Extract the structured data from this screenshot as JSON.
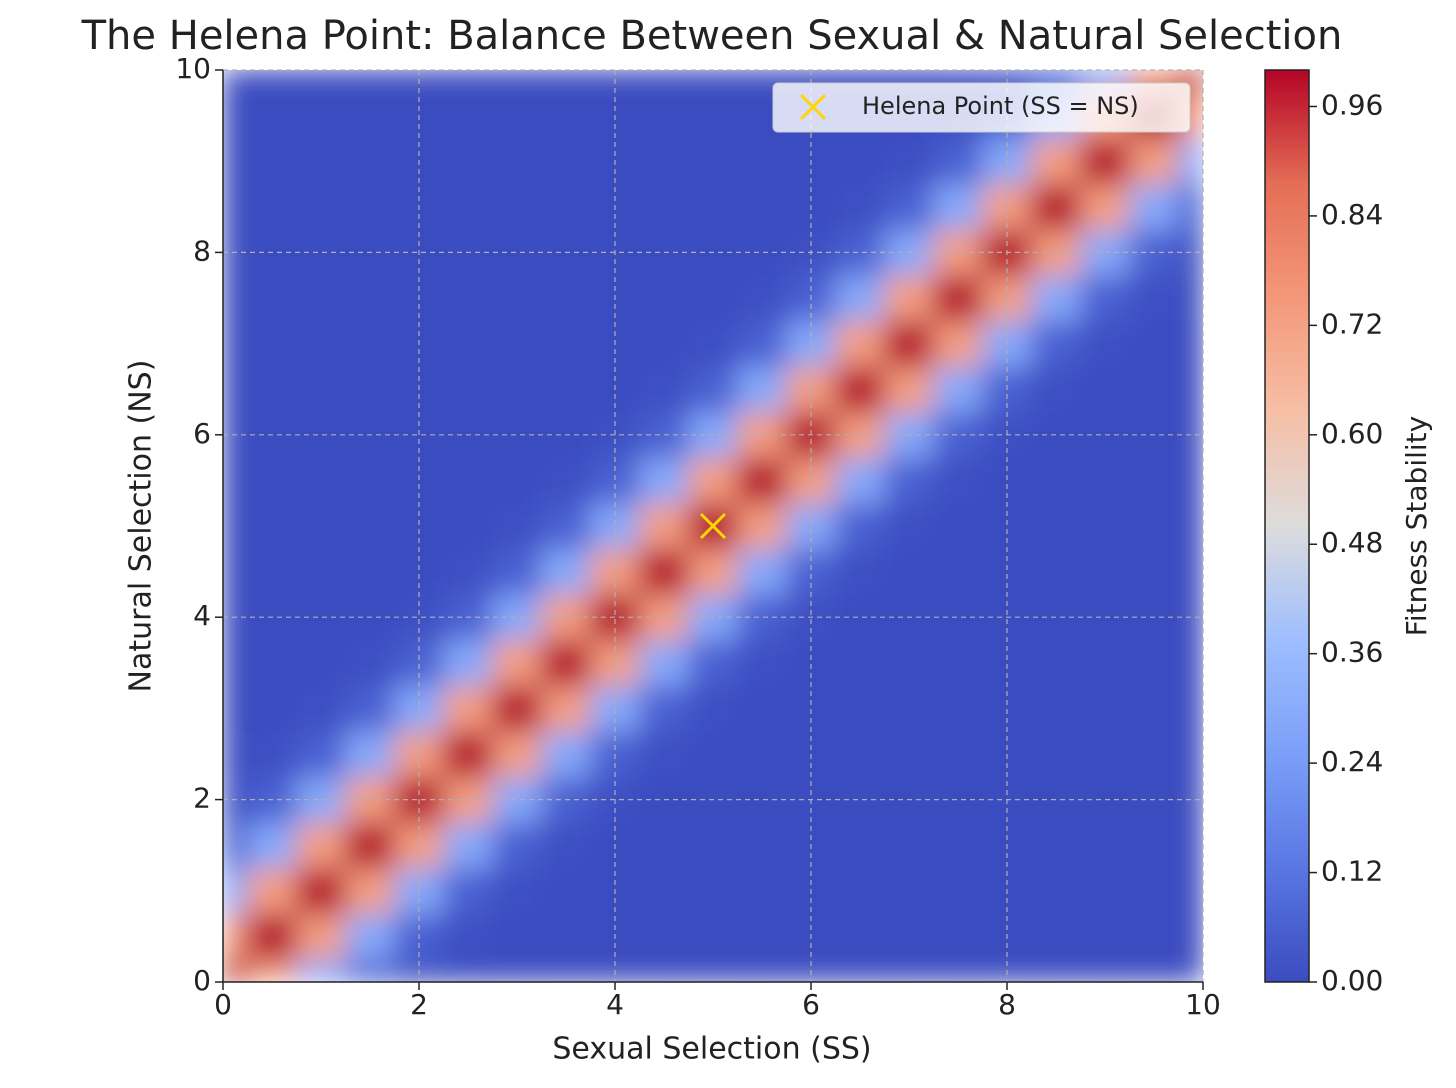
{
  "chart_data": {
    "type": "contour",
    "title": "The Helena Point: Balance Between Sexual & Natural Selection",
    "x_label": "Sexual Selection (SS)",
    "y_label": "Natural Selection (NS)",
    "x": [
      0,
      0.5,
      1,
      1.5,
      2,
      2.5,
      3,
      3.5,
      4,
      4.5,
      5,
      5.5,
      6,
      6.5,
      7,
      7.5,
      8,
      8.5,
      9,
      9.5,
      10
    ],
    "y": [
      0,
      0.5,
      1,
      1.5,
      2,
      2.5,
      3,
      3.5,
      4,
      4.5,
      5,
      5.5,
      6,
      6.5,
      7,
      7.5,
      8,
      8.5,
      9,
      9.5,
      10
    ],
    "z": [
      [
        1,
        0.73,
        0.29,
        0.06,
        0.01,
        0,
        0,
        0,
        0,
        0,
        0,
        0,
        0,
        0,
        0,
        0,
        0,
        0,
        0,
        0,
        0
      ],
      [
        0.73,
        1,
        0.73,
        0.29,
        0.06,
        0.01,
        0,
        0,
        0,
        0,
        0,
        0,
        0,
        0,
        0,
        0,
        0,
        0,
        0,
        0,
        0
      ],
      [
        0.29,
        0.73,
        1,
        0.73,
        0.29,
        0.06,
        0.01,
        0,
        0,
        0,
        0,
        0,
        0,
        0,
        0,
        0,
        0,
        0,
        0,
        0,
        0
      ],
      [
        0.06,
        0.29,
        0.73,
        1,
        0.73,
        0.29,
        0.06,
        0.01,
        0,
        0,
        0,
        0,
        0,
        0,
        0,
        0,
        0,
        0,
        0,
        0,
        0
      ],
      [
        0.01,
        0.06,
        0.29,
        0.73,
        1,
        0.73,
        0.29,
        0.06,
        0.01,
        0,
        0,
        0,
        0,
        0,
        0,
        0,
        0,
        0,
        0,
        0,
        0
      ],
      [
        0,
        0.01,
        0.06,
        0.29,
        0.73,
        1,
        0.73,
        0.29,
        0.06,
        0.01,
        0,
        0,
        0,
        0,
        0,
        0,
        0,
        0,
        0,
        0,
        0
      ],
      [
        0,
        0,
        0.01,
        0.06,
        0.29,
        0.73,
        1,
        0.73,
        0.29,
        0.06,
        0.01,
        0,
        0,
        0,
        0,
        0,
        0,
        0,
        0,
        0,
        0
      ],
      [
        0,
        0,
        0,
        0.01,
        0.06,
        0.29,
        0.73,
        1,
        0.73,
        0.29,
        0.06,
        0.01,
        0,
        0,
        0,
        0,
        0,
        0,
        0,
        0,
        0
      ],
      [
        0,
        0,
        0,
        0,
        0.01,
        0.06,
        0.29,
        0.73,
        1,
        0.73,
        0.29,
        0.06,
        0.01,
        0,
        0,
        0,
        0,
        0,
        0,
        0,
        0
      ],
      [
        0,
        0,
        0,
        0,
        0,
        0.01,
        0.06,
        0.29,
        0.73,
        1,
        0.73,
        0.29,
        0.06,
        0.01,
        0,
        0,
        0,
        0,
        0,
        0,
        0
      ],
      [
        0,
        0,
        0,
        0,
        0,
        0,
        0.01,
        0.06,
        0.29,
        0.73,
        1,
        0.73,
        0.29,
        0.06,
        0.01,
        0,
        0,
        0,
        0,
        0,
        0
      ],
      [
        0,
        0,
        0,
        0,
        0,
        0,
        0,
        0.01,
        0.06,
        0.29,
        0.73,
        1,
        0.73,
        0.29,
        0.06,
        0.01,
        0,
        0,
        0,
        0,
        0
      ],
      [
        0,
        0,
        0,
        0,
        0,
        0,
        0,
        0,
        0.01,
        0.06,
        0.29,
        0.73,
        1,
        0.73,
        0.29,
        0.06,
        0.01,
        0,
        0,
        0,
        0
      ],
      [
        0,
        0,
        0,
        0,
        0,
        0,
        0,
        0,
        0,
        0.01,
        0.06,
        0.29,
        0.73,
        1,
        0.73,
        0.29,
        0.06,
        0.01,
        0,
        0,
        0
      ],
      [
        0,
        0,
        0,
        0,
        0,
        0,
        0,
        0,
        0,
        0,
        0.01,
        0.06,
        0.29,
        0.73,
        1,
        0.73,
        0.29,
        0.06,
        0.01,
        0,
        0
      ],
      [
        0,
        0,
        0,
        0,
        0,
        0,
        0,
        0,
        0,
        0,
        0,
        0.01,
        0.06,
        0.29,
        0.73,
        1,
        0.73,
        0.29,
        0.06,
        0.01,
        0
      ],
      [
        0,
        0,
        0,
        0,
        0,
        0,
        0,
        0,
        0,
        0,
        0,
        0,
        0.01,
        0.06,
        0.29,
        0.73,
        1,
        0.73,
        0.29,
        0.06,
        0.01
      ],
      [
        0,
        0,
        0,
        0,
        0,
        0,
        0,
        0,
        0,
        0,
        0,
        0,
        0,
        0.01,
        0.06,
        0.29,
        0.73,
        1,
        0.73,
        0.29,
        0.06
      ],
      [
        0,
        0,
        0,
        0,
        0,
        0,
        0,
        0,
        0,
        0,
        0,
        0,
        0,
        0,
        0.01,
        0.06,
        0.29,
        0.73,
        1,
        0.73,
        0.29
      ],
      [
        0,
        0,
        0,
        0,
        0,
        0,
        0,
        0,
        0,
        0,
        0,
        0,
        0,
        0,
        0,
        0.01,
        0.06,
        0.29,
        0.73,
        1,
        0.73
      ],
      [
        0,
        0,
        0,
        0,
        0,
        0,
        0,
        0,
        0,
        0,
        0,
        0,
        0,
        0,
        0,
        0,
        0.01,
        0.06,
        0.29,
        0.73,
        1
      ]
    ],
    "xlim": [
      0,
      10
    ],
    "ylim": [
      0,
      10
    ],
    "xticks": [
      0,
      2,
      4,
      6,
      8,
      10
    ],
    "yticks": [
      0,
      2,
      4,
      6,
      8,
      10
    ],
    "grid": true,
    "colorbar": {
      "label": "Fitness Stability",
      "lim": [
        0,
        1
      ],
      "ticks": [
        {
          "value": 0,
          "label": "0.00"
        },
        {
          "value": 0.12,
          "label": "0.12"
        },
        {
          "value": 0.24,
          "label": "0.24"
        },
        {
          "value": 0.36,
          "label": "0.36"
        },
        {
          "value": 0.48,
          "label": "0.48"
        },
        {
          "value": 0.6,
          "label": "0.60"
        },
        {
          "value": 0.72,
          "label": "0.72"
        },
        {
          "value": 0.84,
          "label": "0.84"
        },
        {
          "value": 0.96,
          "label": "0.96"
        }
      ]
    },
    "series": [
      {
        "name": "Helena Point (SS = NS)",
        "color": "#ffd700",
        "marker": "x",
        "x": [
          5
        ],
        "y": [
          5
        ]
      }
    ],
    "legend": "upper right"
  }
}
